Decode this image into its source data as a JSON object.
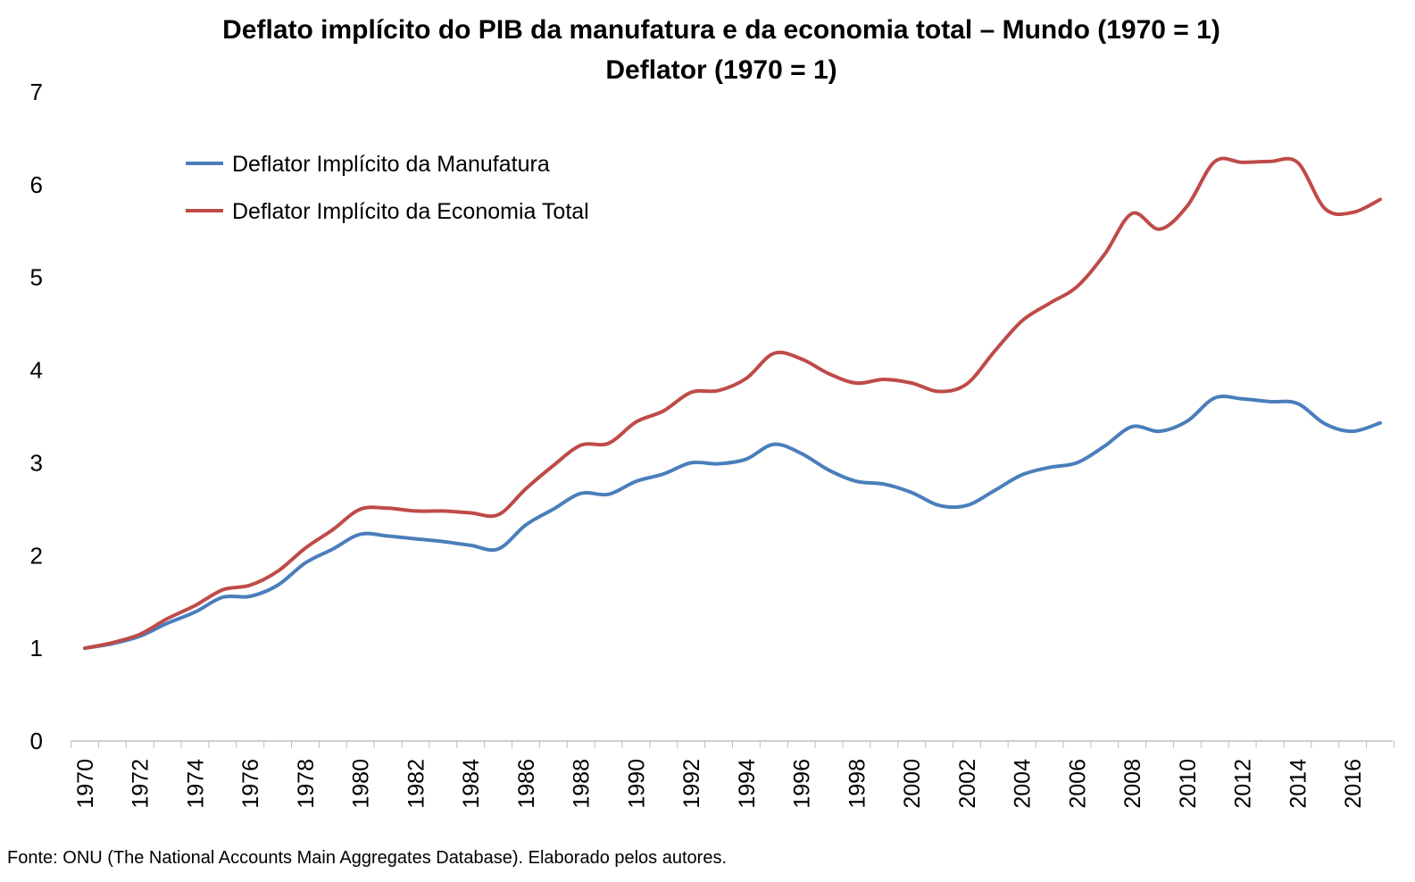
{
  "source_note": "Fonte: ONU (The National Accounts Main Aggregates Database). Elaborado pelos autores.",
  "chart_data": {
    "type": "line",
    "title": "Deflato implícito do PIB da manufatura e da economia total – Mundo (1970 = 1)",
    "subtitle": "Deflator (1970 = 1)",
    "xlabel": "",
    "ylabel": "",
    "ylim": [
      0,
      7
    ],
    "yticks": [
      "0",
      "1",
      "2",
      "3",
      "4",
      "5",
      "6",
      "7"
    ],
    "xtick_labels": [
      "1970",
      "1972",
      "1974",
      "1976",
      "1978",
      "1980",
      "1982",
      "1984",
      "1986",
      "1988",
      "1990",
      "1992",
      "1994",
      "1996",
      "1998",
      "2000",
      "2002",
      "2004",
      "2006",
      "2008",
      "2010",
      "2012",
      "2014",
      "2016"
    ],
    "x": [
      1970,
      1971,
      1972,
      1973,
      1974,
      1975,
      1976,
      1977,
      1978,
      1979,
      1980,
      1981,
      1982,
      1983,
      1984,
      1985,
      1986,
      1987,
      1988,
      1989,
      1990,
      1991,
      1992,
      1993,
      1994,
      1995,
      1996,
      1997,
      1998,
      1999,
      2000,
      2001,
      2002,
      2003,
      2004,
      2005,
      2006,
      2007,
      2008,
      2009,
      2010,
      2011,
      2012,
      2013,
      2014,
      2015,
      2016,
      2017
    ],
    "grid": false,
    "legend_position": "top-left",
    "series": [
      {
        "name": "Deflator Implícito da Manufatura",
        "color": "#4a7ebb",
        "values": [
          1.0,
          1.05,
          1.13,
          1.27,
          1.39,
          1.55,
          1.56,
          1.68,
          1.92,
          2.07,
          2.23,
          2.21,
          2.18,
          2.15,
          2.11,
          2.07,
          2.33,
          2.5,
          2.67,
          2.66,
          2.8,
          2.88,
          3.0,
          2.99,
          3.04,
          3.2,
          3.1,
          2.92,
          2.8,
          2.77,
          2.68,
          2.54,
          2.54,
          2.7,
          2.87,
          2.95,
          3.0,
          3.18,
          3.39,
          3.34,
          3.45,
          3.7,
          3.69,
          3.66,
          3.64,
          3.42,
          3.34,
          3.43
        ]
      },
      {
        "name": "Deflator Implícito da Economia Total",
        "color": "#be4b48",
        "values": [
          1.0,
          1.06,
          1.15,
          1.32,
          1.46,
          1.63,
          1.68,
          1.83,
          2.08,
          2.28,
          2.5,
          2.51,
          2.48,
          2.48,
          2.46,
          2.44,
          2.72,
          2.97,
          3.19,
          3.21,
          3.44,
          3.56,
          3.76,
          3.78,
          3.91,
          4.18,
          4.12,
          3.96,
          3.86,
          3.9,
          3.86,
          3.77,
          3.85,
          4.2,
          4.53,
          4.72,
          4.9,
          5.25,
          5.69,
          5.52,
          5.77,
          6.25,
          6.24,
          6.25,
          6.24,
          5.74,
          5.7,
          5.84
        ]
      }
    ]
  }
}
